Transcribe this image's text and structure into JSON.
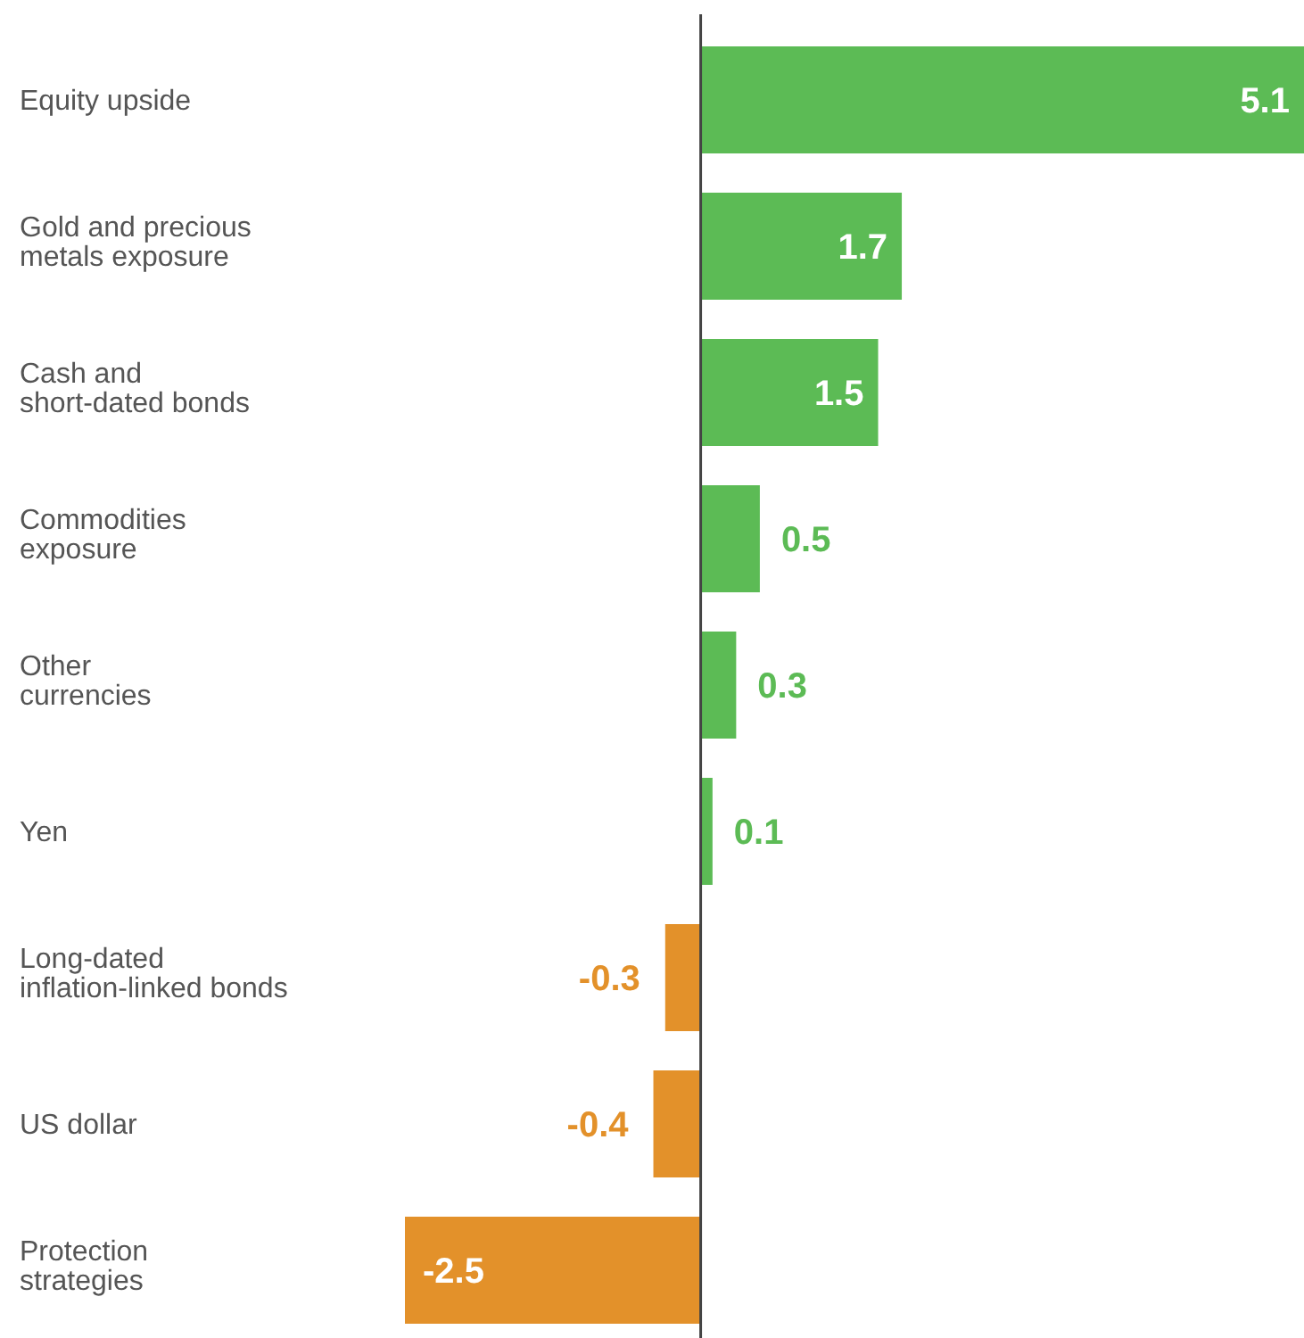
{
  "chart_data": {
    "type": "bar",
    "orientation": "horizontal",
    "data_labels": true,
    "categories": [
      "Equity upside",
      "Gold and precious\nmetals exposure",
      "Cash and\nshort-dated bonds",
      "Commodities\nexposure",
      "Other\ncurrencies",
      "Yen",
      "Long-dated\ninflation-linked bonds",
      "US dollar",
      "Protection\nstrategies"
    ],
    "values": [
      5.1,
      1.7,
      1.5,
      0.5,
      0.3,
      0.1,
      -0.3,
      -0.4,
      -2.5
    ],
    "colors": [
      "#5cbb55",
      "#5cbb55",
      "#5cbb55",
      "#5cbb55",
      "#5cbb55",
      "#5cbb55",
      "#e3912a",
      "#e3912a",
      "#e3912a"
    ]
  }
}
